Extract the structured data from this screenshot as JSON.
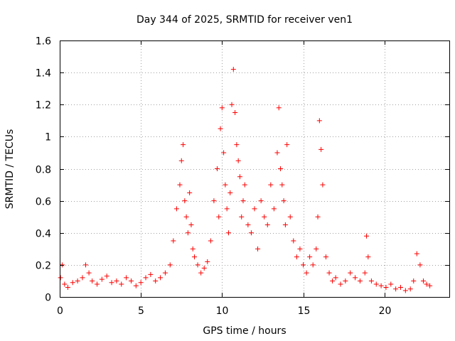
{
  "chart_data": {
    "type": "scatter",
    "title": "Day 344 of 2025, SRMTID for receiver ven1",
    "xlabel": "GPS time / hours",
    "ylabel": "SRMTID / TECUs",
    "xlim": [
      0,
      24
    ],
    "ylim": [
      0,
      1.6
    ],
    "xticks": [
      0,
      5,
      10,
      15,
      20
    ],
    "xtick_labels": [
      "0",
      "5",
      "10",
      "15",
      "20"
    ],
    "yticks": [
      0,
      0.2,
      0.4,
      0.6,
      0.8,
      1.0,
      1.2,
      1.4,
      1.6
    ],
    "ytick_labels": [
      "0",
      "0.2",
      "0.4",
      "0.6",
      "0.8",
      "1",
      "1.2",
      "1.4",
      "1.6"
    ],
    "grid": true,
    "marker": "plus",
    "color": "#ff0000",
    "series": [
      {
        "name": "SRMTID ven1",
        "x": [
          0.05,
          0.15,
          0.3,
          0.5,
          0.8,
          1.1,
          1.4,
          1.6,
          1.8,
          2.0,
          2.3,
          2.6,
          2.9,
          3.2,
          3.5,
          3.8,
          4.1,
          4.4,
          4.7,
          5.0,
          5.3,
          5.6,
          5.9,
          6.2,
          6.5,
          6.8,
          7.0,
          7.2,
          7.4,
          7.5,
          7.6,
          7.7,
          7.8,
          7.9,
          8.0,
          8.1,
          8.2,
          8.3,
          8.5,
          8.7,
          8.9,
          9.1,
          9.3,
          9.5,
          9.7,
          9.8,
          9.9,
          10.0,
          10.1,
          10.2,
          10.3,
          10.4,
          10.5,
          10.6,
          10.7,
          10.8,
          10.9,
          11.0,
          11.1,
          11.2,
          11.3,
          11.4,
          11.6,
          11.8,
          12.0,
          12.2,
          12.4,
          12.6,
          12.8,
          13.0,
          13.2,
          13.4,
          13.5,
          13.6,
          13.7,
          13.8,
          13.9,
          14.0,
          14.2,
          14.4,
          14.6,
          14.8,
          15.0,
          15.2,
          15.4,
          15.6,
          15.8,
          15.9,
          16.0,
          16.1,
          16.2,
          16.4,
          16.6,
          16.8,
          17.0,
          17.3,
          17.6,
          17.9,
          18.2,
          18.5,
          18.8,
          18.9,
          19.0,
          19.2,
          19.5,
          19.8,
          20.1,
          20.4,
          20.7,
          21.0,
          21.3,
          21.6,
          21.8,
          22.0,
          22.2,
          22.4,
          22.6,
          22.8
        ],
        "y": [
          0.12,
          0.2,
          0.08,
          0.06,
          0.09,
          0.1,
          0.12,
          0.2,
          0.15,
          0.1,
          0.08,
          0.11,
          0.13,
          0.09,
          0.1,
          0.08,
          0.12,
          0.1,
          0.07,
          0.09,
          0.12,
          0.14,
          0.1,
          0.12,
          0.15,
          0.2,
          0.35,
          0.55,
          0.7,
          0.85,
          0.95,
          0.6,
          0.5,
          0.4,
          0.65,
          0.45,
          0.3,
          0.25,
          0.2,
          0.15,
          0.18,
          0.22,
          0.35,
          0.6,
          0.8,
          0.5,
          1.05,
          1.18,
          0.9,
          0.7,
          0.55,
          0.4,
          0.65,
          1.2,
          1.42,
          1.15,
          0.95,
          0.85,
          0.75,
          0.5,
          0.6,
          0.7,
          0.45,
          0.4,
          0.55,
          0.3,
          0.6,
          0.5,
          0.45,
          0.7,
          0.55,
          0.9,
          1.18,
          0.8,
          0.7,
          0.6,
          0.45,
          0.95,
          0.5,
          0.35,
          0.25,
          0.3,
          0.2,
          0.15,
          0.25,
          0.2,
          0.3,
          0.5,
          1.1,
          0.92,
          0.7,
          0.25,
          0.15,
          0.1,
          0.12,
          0.08,
          0.1,
          0.15,
          0.12,
          0.1,
          0.15,
          0.38,
          0.25,
          0.1,
          0.08,
          0.07,
          0.06,
          0.08,
          0.05,
          0.06,
          0.04,
          0.05,
          0.1,
          0.27,
          0.2,
          0.1,
          0.08,
          0.07
        ]
      }
    ]
  }
}
